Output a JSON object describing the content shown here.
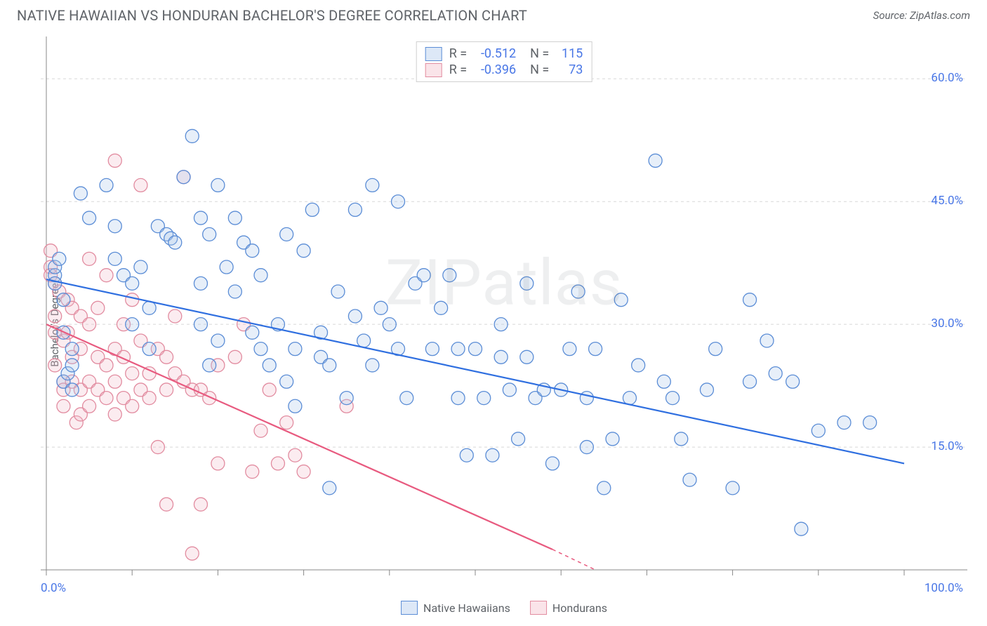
{
  "title": "NATIVE HAWAIIAN VS HONDURAN BACHELOR'S DEGREE CORRELATION CHART",
  "source": "Source: ZipAtlas.com",
  "ylabel": "Bachelor's Degree",
  "watermark": "ZIPatlas",
  "chart": {
    "type": "scatter",
    "xlim": [
      0,
      100
    ],
    "ylim": [
      0,
      65
    ],
    "yticks": [
      {
        "v": 15.0,
        "label": "15.0%"
      },
      {
        "v": 30.0,
        "label": "30.0%"
      },
      {
        "v": 45.0,
        "label": "45.0%"
      },
      {
        "v": 60.0,
        "label": "60.0%"
      }
    ],
    "xticks_minor": [
      0,
      10,
      20,
      30,
      40,
      50,
      60,
      70,
      80,
      90,
      100
    ],
    "xlabels": [
      {
        "v": 0,
        "label": "0.0%"
      },
      {
        "v": 100,
        "label": "100.0%"
      }
    ],
    "grid_color": "#d8d8d8",
    "axis_color": "#888888",
    "background_color": "#ffffff",
    "marker_radius": 9.5,
    "marker_stroke_width": 1.3,
    "marker_fill_opacity": 0.28,
    "trend_width": 2.2
  },
  "series": [
    {
      "name": "Native Hawaiians",
      "color_stroke": "#5b8dd6",
      "color_fill": "#a9c5ea",
      "trend_color": "#2f6fe0",
      "R": "-0.512",
      "N": "115",
      "trend": {
        "x1": 0,
        "y1": 35.5,
        "x2": 100,
        "y2": 13.0
      },
      "points": [
        [
          1,
          36
        ],
        [
          1,
          35
        ],
        [
          1,
          37
        ],
        [
          1.5,
          38
        ],
        [
          2,
          33
        ],
        [
          2,
          29
        ],
        [
          2,
          23
        ],
        [
          2.5,
          24
        ],
        [
          3,
          25
        ],
        [
          3,
          22
        ],
        [
          3,
          27
        ],
        [
          4,
          46
        ],
        [
          5,
          43
        ],
        [
          7,
          47
        ],
        [
          8,
          42
        ],
        [
          8,
          38
        ],
        [
          9,
          36
        ],
        [
          10,
          35
        ],
        [
          10,
          30
        ],
        [
          11,
          37
        ],
        [
          12,
          32
        ],
        [
          12,
          27
        ],
        [
          13,
          42
        ],
        [
          14,
          41
        ],
        [
          14.5,
          40.5
        ],
        [
          15,
          40
        ],
        [
          16,
          48
        ],
        [
          17,
          53
        ],
        [
          18,
          43
        ],
        [
          18,
          35
        ],
        [
          18,
          30
        ],
        [
          19,
          41
        ],
        [
          19,
          25
        ],
        [
          20,
          47
        ],
        [
          20,
          28
        ],
        [
          21,
          37
        ],
        [
          22,
          43
        ],
        [
          22,
          34
        ],
        [
          23,
          40
        ],
        [
          24,
          39
        ],
        [
          24,
          29
        ],
        [
          25,
          36
        ],
        [
          25,
          27
        ],
        [
          26,
          25
        ],
        [
          27,
          30
        ],
        [
          28,
          41
        ],
        [
          28,
          23
        ],
        [
          29,
          20
        ],
        [
          29,
          27
        ],
        [
          30,
          39
        ],
        [
          31,
          44
        ],
        [
          32,
          29
        ],
        [
          32,
          26
        ],
        [
          33,
          25
        ],
        [
          33,
          10
        ],
        [
          34,
          34
        ],
        [
          35,
          21
        ],
        [
          36,
          31
        ],
        [
          36,
          44
        ],
        [
          37,
          28
        ],
        [
          38,
          47
        ],
        [
          38,
          25
        ],
        [
          39,
          32
        ],
        [
          40,
          30
        ],
        [
          41,
          27
        ],
        [
          41,
          45
        ],
        [
          42,
          21
        ],
        [
          43,
          35
        ],
        [
          44,
          36
        ],
        [
          45,
          27
        ],
        [
          46,
          32
        ],
        [
          47,
          36
        ],
        [
          48,
          27
        ],
        [
          48,
          21
        ],
        [
          49,
          14
        ],
        [
          50,
          27
        ],
        [
          51,
          21
        ],
        [
          52,
          14
        ],
        [
          53,
          30
        ],
        [
          53,
          26
        ],
        [
          54,
          22
        ],
        [
          55,
          16
        ],
        [
          56,
          35
        ],
        [
          56,
          26
        ],
        [
          57,
          21
        ],
        [
          58,
          22
        ],
        [
          59,
          13
        ],
        [
          60,
          22
        ],
        [
          61,
          27
        ],
        [
          62,
          34
        ],
        [
          63,
          15
        ],
        [
          63,
          21
        ],
        [
          64,
          27
        ],
        [
          65,
          10
        ],
        [
          66,
          16
        ],
        [
          67,
          33
        ],
        [
          68,
          21
        ],
        [
          69,
          25
        ],
        [
          71,
          50
        ],
        [
          72,
          23
        ],
        [
          73,
          21
        ],
        [
          74,
          16
        ],
        [
          75,
          11
        ],
        [
          77,
          22
        ],
        [
          78,
          27
        ],
        [
          80,
          10
        ],
        [
          82,
          23
        ],
        [
          84,
          28
        ],
        [
          85,
          24
        ],
        [
          87,
          23
        ],
        [
          88,
          5
        ],
        [
          90,
          17
        ],
        [
          93,
          18
        ],
        [
          96,
          18
        ],
        [
          82,
          33
        ]
      ]
    },
    {
      "name": "Hondurans",
      "color_stroke": "#e28ca0",
      "color_fill": "#f2bcc8",
      "trend_color": "#e85a7f",
      "R": "-0.396",
      "N": "73",
      "trend": {
        "x1": 0,
        "y1": 30.0,
        "x2": 59,
        "y2": 2.5
      },
      "trend_ext": {
        "x1": 59,
        "y1": 2.5,
        "x2": 64,
        "y2": 0
      },
      "points": [
        [
          0.5,
          37
        ],
        [
          0.5,
          36
        ],
        [
          0.5,
          39
        ],
        [
          1,
          35
        ],
        [
          1,
          31
        ],
        [
          1,
          29
        ],
        [
          1,
          25
        ],
        [
          1.5,
          34
        ],
        [
          2,
          28
        ],
        [
          2,
          23
        ],
        [
          2,
          22
        ],
        [
          2,
          20
        ],
        [
          2.5,
          29
        ],
        [
          2.5,
          33
        ],
        [
          3,
          32
        ],
        [
          3,
          26
        ],
        [
          3,
          23
        ],
        [
          3.5,
          18
        ],
        [
          4,
          31
        ],
        [
          4,
          27
        ],
        [
          4,
          22
        ],
        [
          4,
          19
        ],
        [
          5,
          30
        ],
        [
          5,
          23
        ],
        [
          5,
          20
        ],
        [
          5,
          38
        ],
        [
          6,
          26
        ],
        [
          6,
          22
        ],
        [
          6,
          32
        ],
        [
          7,
          36
        ],
        [
          7,
          25
        ],
        [
          7,
          21
        ],
        [
          8,
          50
        ],
        [
          8,
          27
        ],
        [
          8,
          23
        ],
        [
          8,
          19
        ],
        [
          9,
          30
        ],
        [
          9,
          26
        ],
        [
          9,
          21
        ],
        [
          10,
          33
        ],
        [
          10,
          24
        ],
        [
          10,
          20
        ],
        [
          11,
          28
        ],
        [
          11,
          22
        ],
        [
          11,
          47
        ],
        [
          12,
          21
        ],
        [
          12,
          24
        ],
        [
          13,
          27
        ],
        [
          13,
          15
        ],
        [
          14,
          26
        ],
        [
          14,
          22
        ],
        [
          14,
          8
        ],
        [
          15,
          31
        ],
        [
          15,
          24
        ],
        [
          16,
          48
        ],
        [
          16,
          23
        ],
        [
          17,
          2
        ],
        [
          17,
          22
        ],
        [
          18,
          22
        ],
        [
          18,
          8
        ],
        [
          19,
          21
        ],
        [
          20,
          25
        ],
        [
          20,
          13
        ],
        [
          22,
          26
        ],
        [
          23,
          30
        ],
        [
          24,
          12
        ],
        [
          25,
          17
        ],
        [
          26,
          22
        ],
        [
          27,
          13
        ],
        [
          28,
          18
        ],
        [
          29,
          14
        ],
        [
          30,
          12
        ],
        [
          35,
          20
        ]
      ]
    }
  ],
  "bottom_legend": [
    {
      "label": "Native Hawaiians",
      "stroke": "#5b8dd6",
      "fill": "#a9c5ea"
    },
    {
      "label": "Hondurans",
      "stroke": "#e28ca0",
      "fill": "#f2bcc8"
    }
  ]
}
